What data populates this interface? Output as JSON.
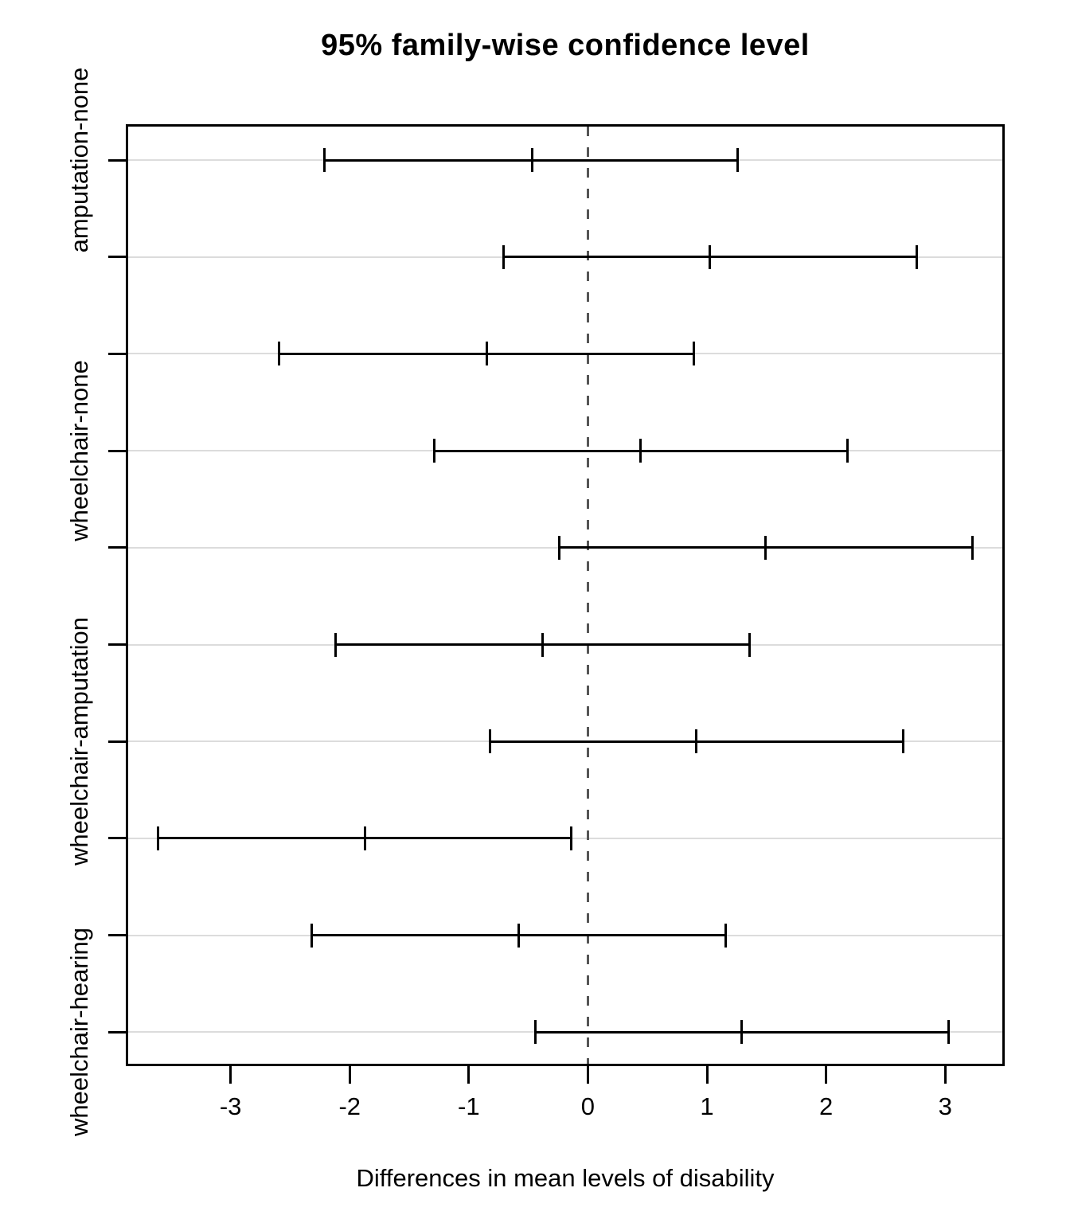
{
  "chart_data": {
    "type": "tukey_confidence_intervals",
    "title": "95% family-wise confidence level",
    "xlabel": "Differences in mean levels of disability",
    "x_ticks": [
      -3,
      -2,
      -1,
      0,
      1,
      2,
      3
    ],
    "x_range": [
      -3.88,
      3.5
    ],
    "zero_reference_line": 0,
    "legend": "none",
    "grid": "horizontal-light-per-row",
    "rows": [
      {
        "label": "amputation-none",
        "diff": -0.47,
        "lwr": -2.21,
        "upr": 1.26
      },
      {
        "label": "",
        "diff": 1.02,
        "lwr": -0.71,
        "upr": 2.76
      },
      {
        "label": "",
        "diff": -0.85,
        "lwr": -2.59,
        "upr": 0.89
      },
      {
        "label": "wheelchair-none",
        "diff": 0.44,
        "lwr": -1.29,
        "upr": 2.18
      },
      {
        "label": "",
        "diff": 1.49,
        "lwr": -0.24,
        "upr": 3.23
      },
      {
        "label": "",
        "diff": -0.38,
        "lwr": -2.12,
        "upr": 1.36
      },
      {
        "label": "wheelchair-amputation",
        "diff": 0.91,
        "lwr": -0.82,
        "upr": 2.65
      },
      {
        "label": "",
        "diff": -1.87,
        "lwr": -3.61,
        "upr": -0.14
      },
      {
        "label": "",
        "diff": -0.58,
        "lwr": -2.32,
        "upr": 1.16
      },
      {
        "label": "wheelchair-hearing",
        "diff": 1.29,
        "lwr": -0.44,
        "upr": 3.03
      }
    ],
    "colors": {
      "interval": "#000000",
      "box": "#000000",
      "grid_line": "#dcdcdc",
      "zero_dash": "#555555",
      "text": "#000000",
      "background": "#ffffff"
    }
  }
}
